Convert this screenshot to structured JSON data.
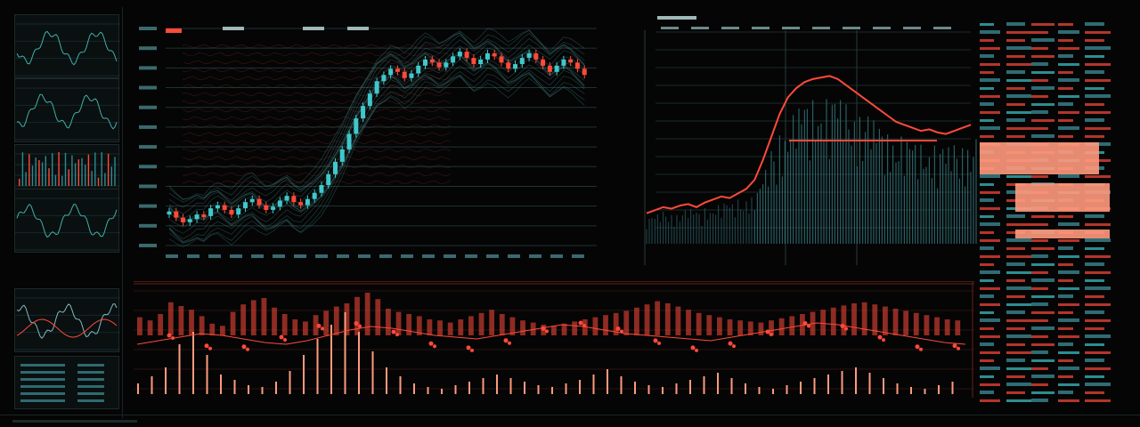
{
  "theme": {
    "background": "#050505",
    "accent_red": "#ff4a3a",
    "accent_cyan": "#40c8cc",
    "accent_salmon": "#ff9a7d"
  },
  "sidebar": {
    "thumbnails": [
      {
        "type": "line"
      },
      {
        "type": "line"
      },
      {
        "type": "bar"
      },
      {
        "type": "line"
      },
      {
        "type": "area"
      },
      {
        "type": "table"
      }
    ]
  },
  "main_chart": {
    "type": "candlestick",
    "closes": [
      62,
      58,
      55,
      57,
      60,
      59,
      64,
      66,
      63,
      60,
      64,
      68,
      70,
      66,
      63,
      65,
      69,
      72,
      68,
      66,
      70,
      74,
      79,
      86,
      94,
      102,
      112,
      122,
      130,
      138,
      146,
      150,
      154,
      152,
      148,
      151,
      156,
      160,
      158,
      155,
      158,
      162,
      165,
      161,
      157,
      160,
      164,
      162,
      158,
      154,
      157,
      161,
      164,
      160,
      156,
      152,
      156,
      160,
      158,
      154,
      150
    ],
    "ylim": [
      40,
      180
    ]
  },
  "right_chart": {
    "type": "line",
    "values": [
      20,
      22,
      24,
      23,
      25,
      26,
      24,
      27,
      29,
      31,
      30,
      33,
      36,
      42,
      55,
      70,
      85,
      96,
      102,
      106,
      108,
      109,
      110,
      108,
      104,
      100,
      96,
      92,
      88,
      84,
      80,
      78,
      76,
      74,
      75,
      73,
      72,
      74,
      76,
      78
    ],
    "ylim": [
      0,
      140
    ]
  },
  "volume": {
    "bars_red": [
      34,
      28,
      40,
      62,
      55,
      48,
      36,
      22,
      18,
      44,
      58,
      66,
      70,
      52,
      40,
      30,
      26,
      38,
      46,
      54,
      60,
      72,
      80,
      68,
      50,
      44,
      40,
      36,
      30,
      28,
      24,
      30,
      36,
      42,
      48,
      40,
      34,
      28,
      24,
      20,
      18,
      22,
      26,
      30,
      34,
      38,
      42,
      46,
      52,
      58,
      64,
      60,
      54,
      48,
      42,
      38,
      34,
      30,
      28,
      26,
      24,
      28,
      32,
      36,
      40,
      44,
      48,
      52,
      56,
      60,
      62,
      58,
      54,
      50,
      46,
      42,
      38,
      34,
      30,
      28
    ],
    "bars_salmon": [
      12,
      20,
      30,
      56,
      70,
      44,
      22,
      16,
      10,
      8,
      14,
      26,
      44,
      62,
      78,
      92,
      70,
      48,
      30,
      20,
      12,
      8,
      6,
      10,
      14,
      18,
      22,
      18,
      14,
      10,
      8,
      12,
      16,
      22,
      28,
      20,
      14,
      10,
      8,
      12,
      16,
      20,
      24,
      18,
      12,
      8,
      6,
      10,
      14,
      18,
      22,
      26,
      30,
      24,
      18,
      12,
      8,
      6,
      10,
      14
    ],
    "line": [
      40,
      44,
      48,
      52,
      50,
      46,
      42,
      40,
      44,
      50,
      56,
      60,
      58,
      54,
      50,
      48,
      46,
      50,
      54,
      58,
      62,
      60,
      56,
      52,
      50,
      48,
      46,
      44,
      48,
      52,
      56,
      60,
      64,
      62,
      58,
      54,
      50,
      46,
      42,
      40
    ]
  },
  "order_book": {
    "boxes": [
      {
        "kind": "highlight"
      },
      {
        "kind": "highlight"
      },
      {
        "kind": "highlight"
      }
    ]
  }
}
